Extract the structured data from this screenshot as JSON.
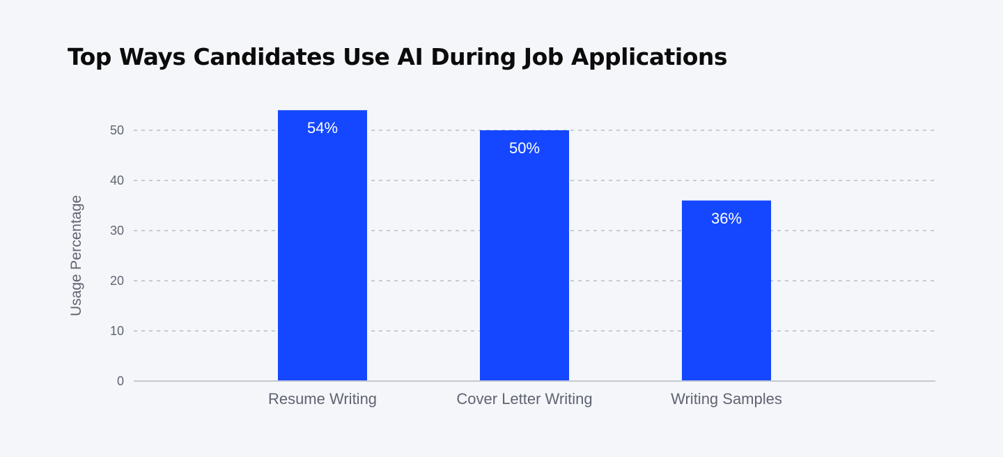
{
  "chart_data": {
    "type": "bar",
    "title": "Top Ways Candidates Use AI During Job Applications",
    "xlabel": "",
    "ylabel": "Usage Percentage",
    "categories": [
      "Resume Writing",
      "Cover Letter Writing",
      "Writing Samples"
    ],
    "values": [
      54,
      50,
      36
    ],
    "data_labels": [
      "54%",
      "50%",
      "36%"
    ],
    "ylim": [
      0,
      55
    ],
    "yticks": [
      0,
      10,
      20,
      30,
      40,
      50
    ],
    "ytick_labels": [
      "0",
      "10",
      "20",
      "30",
      "40",
      "50"
    ],
    "grid": true,
    "bar_color": "#1447ff",
    "legend": "none"
  }
}
